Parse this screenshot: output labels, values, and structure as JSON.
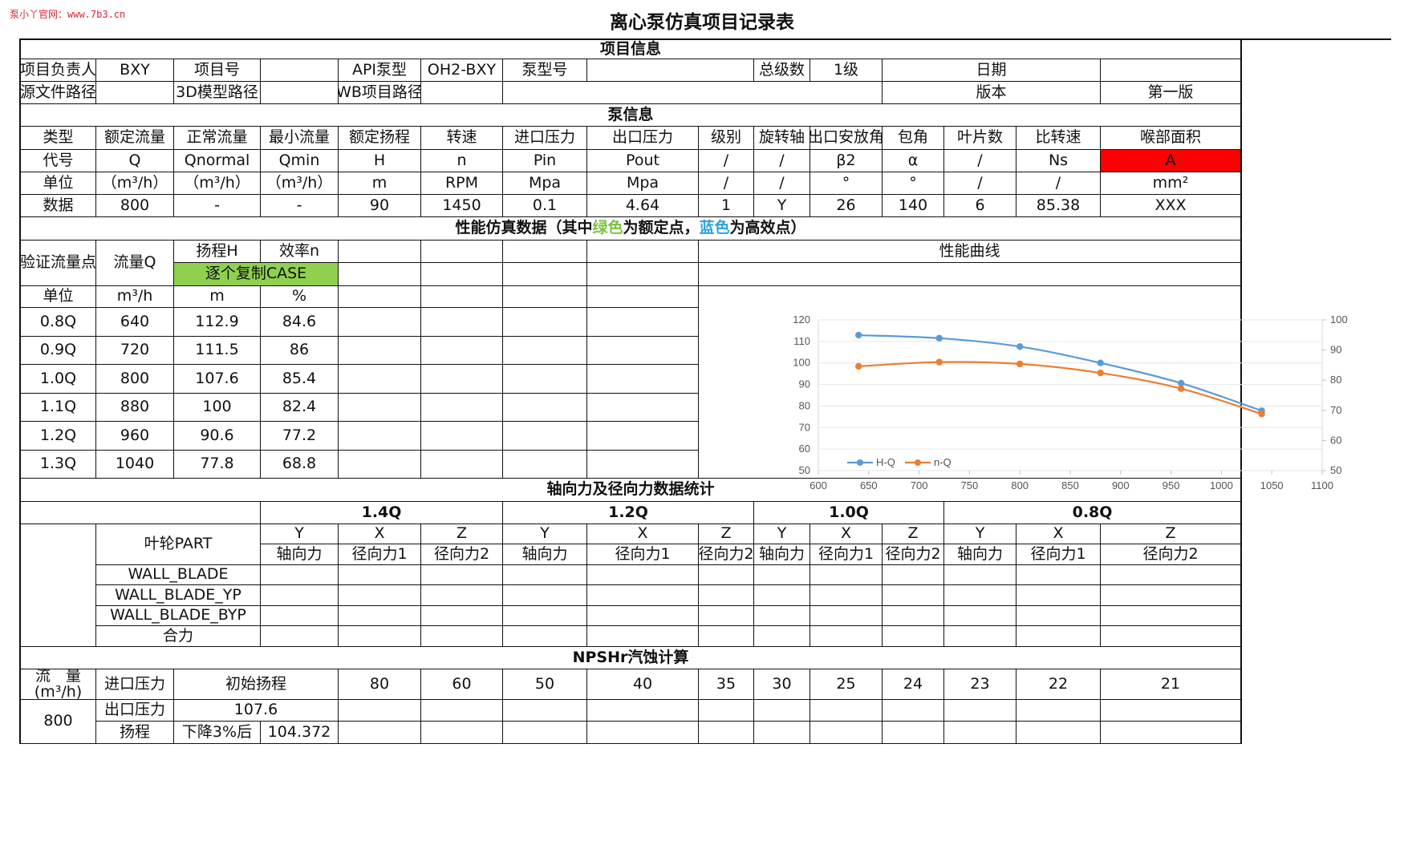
{
  "watermark": "泵小丫官网：www.7b3.cn",
  "doc_title": "离心泵仿真项目记录表",
  "sections": {
    "project": "项目信息",
    "pump": "泵信息",
    "perf_pre": "性能仿真数据（其中",
    "perf_green": "绿色",
    "perf_mid": "为额定点，",
    "perf_blue": "蓝色",
    "perf_post": "为高效点）",
    "axial": "轴向力及径向力数据统计",
    "npsh": "NPSHr汽蚀计算"
  },
  "project": {
    "owner_label": "项目负责人",
    "owner": "BXY",
    "no_label": "项目号",
    "no": "",
    "api_label": "API泵型",
    "api": "OH2-BXY",
    "model_label": "泵型号",
    "model": "",
    "stages_label": "总级数",
    "stages": "1级",
    "date_label": "日期",
    "date": "",
    "src_label": "源文件路径",
    "src": "",
    "model3d_label": "3D模型路径",
    "model3d": "",
    "wb_label": "WB项目路径",
    "wb": "",
    "version_label": "版本",
    "version": "第一版"
  },
  "pump": {
    "headers": [
      "类型",
      "额定流量",
      "正常流量",
      "最小流量",
      "额定扬程",
      "转速",
      "进口压力",
      "出口压力",
      "级别",
      "旋转轴",
      "出口安放角",
      "包角",
      "叶片数",
      "比转速",
      "喉部面积"
    ],
    "codes": [
      "代号",
      "Q",
      "Qnormal",
      "Qmin",
      "H",
      "n",
      "Pin",
      "Pout",
      "/",
      "/",
      "β2",
      "α",
      "/",
      "Ns",
      "A"
    ],
    "units": [
      "单位",
      "（m³/h）",
      "（m³/h）",
      "（m³/h）",
      "m",
      "RPM",
      "Mpa",
      "Mpa",
      "/",
      "/",
      "°",
      "°",
      "/",
      "/",
      "mm²"
    ],
    "values": [
      "数据",
      "800",
      "-",
      "-",
      "90",
      "1450",
      "0.1",
      "4.64",
      "1",
      "Y",
      "26",
      "140",
      "6",
      "85.38",
      "XXX"
    ]
  },
  "perf": {
    "col_point": "验证流量点",
    "col_flow": "流量Q",
    "col_head": "扬程H",
    "col_eff": "效率n",
    "copy_case": "逐个复制CASE",
    "curve_title": "性能曲线",
    "units": [
      "单位",
      "m³/h",
      "m",
      "%"
    ],
    "rows": [
      [
        "0.8Q",
        "640",
        "112.9",
        "84.6"
      ],
      [
        "0.9Q",
        "720",
        "111.5",
        "86"
      ],
      [
        "1.0Q",
        "800",
        "107.6",
        "85.4"
      ],
      [
        "1.1Q",
        "880",
        "100",
        "82.4"
      ],
      [
        "1.2Q",
        "960",
        "90.6",
        "77.2"
      ],
      [
        "1.3Q",
        "1040",
        "77.8",
        "68.8"
      ]
    ]
  },
  "chart_data": {
    "type": "line",
    "title": "性能曲线",
    "x": [
      640,
      720,
      800,
      880,
      960,
      1040
    ],
    "xlim": [
      600,
      1100
    ],
    "xticks": [
      "600",
      "650",
      "700",
      "750",
      "800",
      "850",
      "900",
      "950",
      "1000",
      "1050",
      "1100"
    ],
    "ylim": [
      50,
      120
    ],
    "yticks_left": [
      "50",
      "60",
      "70",
      "80",
      "90",
      "100",
      "110",
      "120"
    ],
    "y2lim": [
      50,
      100
    ],
    "yticks_right": [
      "50",
      "60",
      "70",
      "80",
      "90",
      "100"
    ],
    "grid": true,
    "legend_position": "bottom-left",
    "series": [
      {
        "name": "H-Q",
        "axis": "left",
        "color": "#5b9bd5",
        "values": [
          112.9,
          111.5,
          107.6,
          100,
          90.6,
          77.8
        ]
      },
      {
        "name": "n-Q",
        "axis": "right",
        "color": "#ed7d31",
        "values": [
          84.6,
          86,
          85.4,
          82.4,
          77.2,
          68.8
        ]
      }
    ]
  },
  "axial": {
    "groups": [
      "1.4Q",
      "1.2Q",
      "1.0Q",
      "0.8Q"
    ],
    "axes": [
      "Y",
      "X",
      "Z",
      "Y",
      "X",
      "Z",
      "Y",
      "X",
      "Z",
      "Y",
      "X",
      "Z"
    ],
    "forces": [
      "轴向力",
      "径向力1",
      "径向力2",
      "轴向力",
      "径向力1",
      "径向力2",
      "轴向力",
      "径向力1",
      "径向力2",
      "轴向力",
      "径向力1",
      "径向力2"
    ],
    "part_label": "叶轮PART",
    "parts": [
      "WALL_BLADE",
      "WALL_BLADE_YP",
      "WALL_BLADE_BYP",
      "合力"
    ]
  },
  "npsh": {
    "flow_label": "流　量\n(m³/h)",
    "inlet_label": "进口压力",
    "init_head_label": "初始扬程",
    "pressures": [
      "80",
      "60",
      "50",
      "40",
      "35",
      "30",
      "25",
      "24",
      "23",
      "22",
      "21"
    ],
    "flow": "800",
    "outlet_label": "出口压力",
    "outlet_value": "107.6",
    "head_label": "扬程",
    "drop_label": "下降3%后",
    "drop_value": "104.372"
  }
}
